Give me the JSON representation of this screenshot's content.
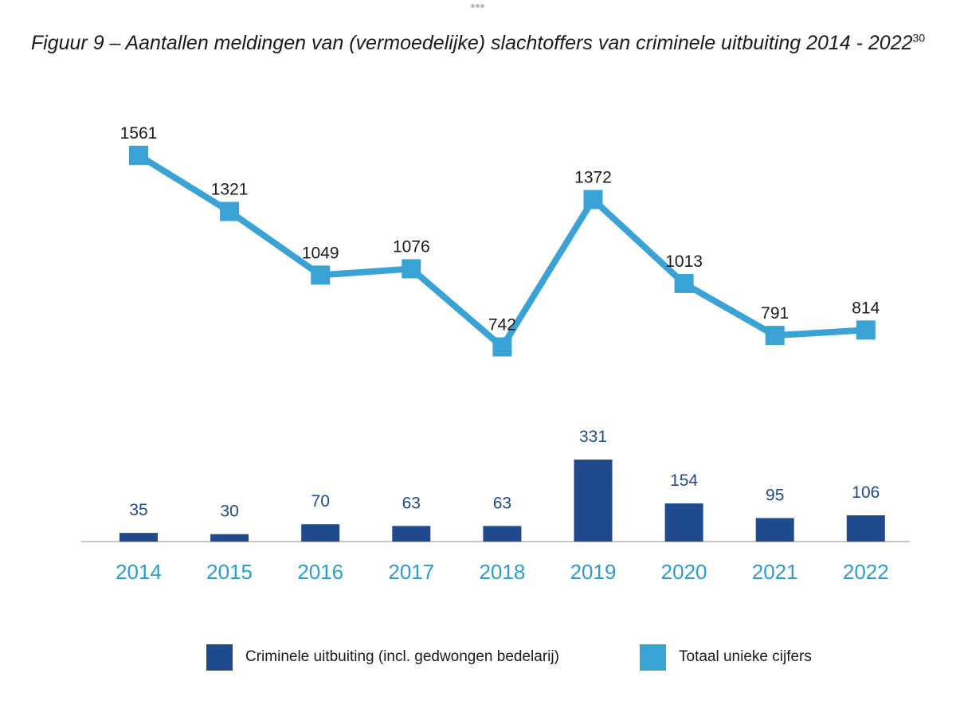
{
  "title": "Figuur 9 – Aantallen meldingen van (vermoedelijke) slachtoffers van criminele uitbuiting 2014 - 2022",
  "title_footnote": "30",
  "chart_data": {
    "type": "bar",
    "categories": [
      "2014",
      "2015",
      "2016",
      "2017",
      "2018",
      "2019",
      "2020",
      "2021",
      "2022"
    ],
    "series": [
      {
        "name": "Criminele uitbuiting (incl. gedwongen bedelarij)",
        "type": "bar",
        "color": "#1f4a8e",
        "values": [
          35,
          30,
          70,
          63,
          63,
          331,
          154,
          95,
          106
        ]
      },
      {
        "name": "Totaal unieke cijfers",
        "type": "line",
        "color": "#3aa3d6",
        "values": [
          1561,
          1321,
          1049,
          1076,
          742,
          1372,
          1013,
          791,
          814
        ]
      }
    ],
    "data_labels": true,
    "grid": false,
    "legend": "bottom"
  },
  "colors": {
    "bar": "#1f4a8e",
    "line": "#3aa3d6",
    "axis_labels": "#2a9ed4",
    "baseline": "#c9c9c9",
    "text": "#1b1b1b"
  }
}
